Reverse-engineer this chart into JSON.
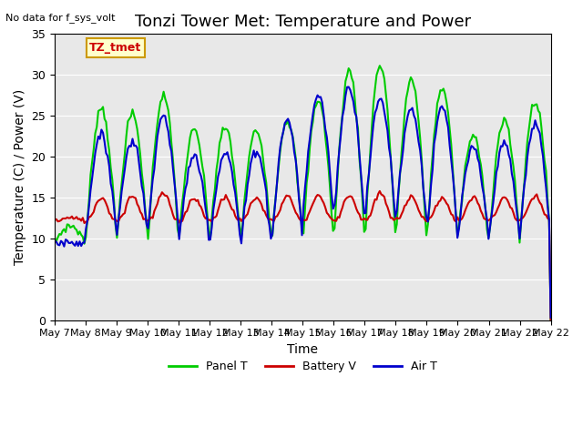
{
  "title": "Tonzi Tower Met: Temperature and Power",
  "xlabel": "Time",
  "ylabel": "Temperature (C) / Power (V)",
  "top_left_text": "No data for f_sys_volt",
  "legend_label_text": "TZ_tmet",
  "ylim": [
    0,
    35
  ],
  "yticks": [
    0,
    5,
    10,
    15,
    20,
    25,
    30,
    35
  ],
  "x_tick_labels": [
    "May 7",
    "May 8",
    "May 9",
    "May 10",
    "May 11",
    "May 12",
    "May 13",
    "May 14",
    "May 15",
    "May 16",
    "May 17",
    "May 18",
    "May 19",
    "May 20",
    "May 21",
    "May 22",
    "May 22"
  ],
  "panel_color": "#00cc00",
  "battery_color": "#cc0000",
  "air_color": "#0000cc",
  "bg_color": "#e8e8e8",
  "legend_bg": "#ffffcc",
  "legend_border": "#cc9900",
  "title_fontsize": 13,
  "axis_fontsize": 10,
  "tick_fontsize": 9,
  "linewidth": 1.5,
  "n_points": 320,
  "panel_peaks": [
    11.5,
    26.0,
    25.2,
    27.5,
    23.2,
    23.5,
    23.2,
    24.5,
    27.0,
    30.5,
    31.2,
    29.5,
    28.5,
    22.5,
    24.5,
    26.8
  ],
  "air_peaks": [
    9.5,
    22.5,
    22.0,
    25.0,
    20.0,
    20.5,
    20.8,
    24.5,
    27.5,
    28.5,
    27.0,
    25.8,
    26.0,
    21.0,
    21.5,
    24.0
  ],
  "bat_peaks": [
    12.5,
    15.0,
    15.2,
    15.5,
    15.0,
    15.0,
    15.0,
    15.2,
    15.3,
    15.3,
    15.5,
    15.2,
    15.0,
    15.0,
    15.0,
    15.2
  ],
  "panel_troughs": [
    9.5,
    9.5,
    9.5,
    9.5,
    9.5,
    9.5,
    9.5,
    9.5,
    9.5,
    9.5,
    9.5,
    9.5,
    9.5,
    9.5,
    9.5,
    9.5
  ],
  "air_troughs": [
    9.5,
    10.5,
    10.0,
    10.5,
    9.5,
    9.5,
    8.8,
    9.5,
    12.5,
    12.2,
    12.0,
    12.0,
    9.8,
    9.8,
    9.8,
    10.0
  ],
  "bat_troughs": [
    12.2,
    12.2,
    12.2,
    12.2,
    12.2,
    12.2,
    12.2,
    12.2,
    12.2,
    12.2,
    12.2,
    12.2,
    12.2,
    12.2,
    12.2,
    12.2
  ]
}
